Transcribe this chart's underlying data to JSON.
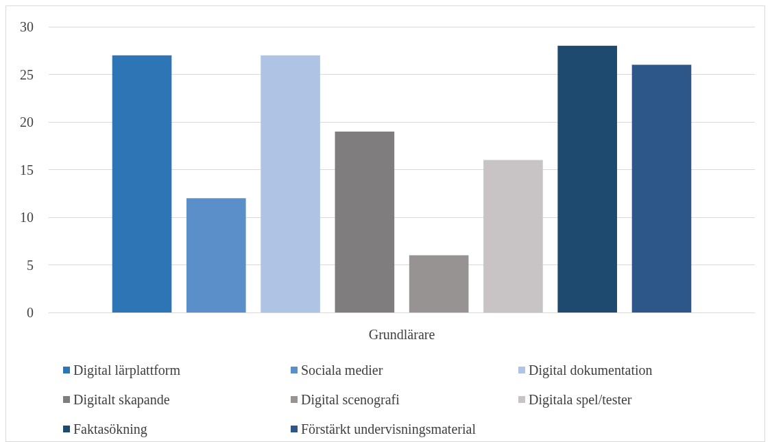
{
  "chart_data": {
    "type": "bar",
    "categories": [
      "Grundlärare"
    ],
    "series": [
      {
        "name": "Digital lärplattform",
        "color": "#2e75b6",
        "values": [
          27
        ]
      },
      {
        "name": "Sociala medier",
        "color": "#5b8fc9",
        "values": [
          12
        ]
      },
      {
        "name": "Digital dokumentation",
        "color": "#afc3e5",
        "values": [
          27
        ]
      },
      {
        "name": "Digitalt skapande",
        "color": "#7f7d7e",
        "values": [
          19
        ]
      },
      {
        "name": "Digital scenografi",
        "color": "#979393",
        "values": [
          6
        ]
      },
      {
        "name": "Digitala spel/tester",
        "color": "#c8c4c5",
        "values": [
          16
        ]
      },
      {
        "name": "Faktasökning",
        "color": "#1f4a6f",
        "values": [
          28
        ]
      },
      {
        "name": "Förstärkt undervisningsmaterial",
        "color": "#2d5689",
        "values": [
          26
        ]
      }
    ],
    "ylim": [
      0,
      30
    ],
    "yticks": [
      0,
      5,
      10,
      15,
      20,
      25,
      30
    ],
    "grid": "y",
    "legend": "bottom"
  }
}
